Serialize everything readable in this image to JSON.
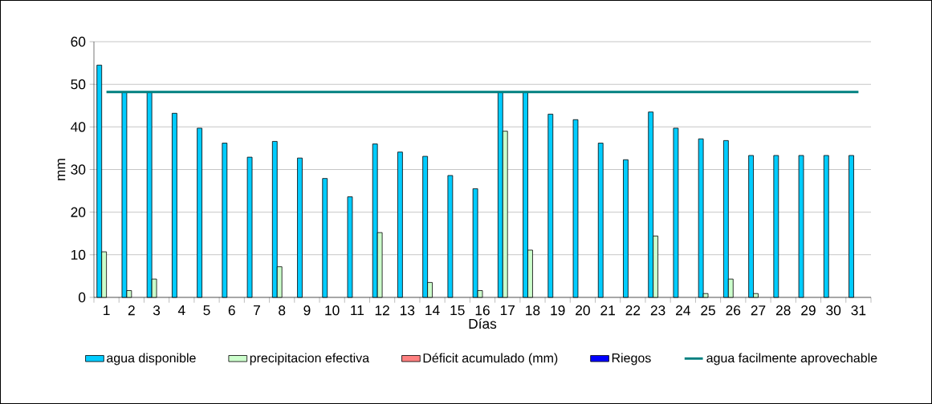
{
  "chart_data": {
    "type": "bar",
    "xlabel": "Días",
    "ylabel": "mm",
    "categories": [
      "1",
      "2",
      "3",
      "4",
      "5",
      "6",
      "7",
      "8",
      "9",
      "10",
      "11",
      "12",
      "13",
      "14",
      "15",
      "16",
      "17",
      "18",
      "19",
      "20",
      "21",
      "22",
      "23",
      "24",
      "25",
      "26",
      "27",
      "28",
      "29",
      "30",
      "31"
    ],
    "series": [
      {
        "name": "agua disponible",
        "color": "#00ccff",
        "values": [
          54.5,
          48.2,
          48.2,
          43.2,
          39.7,
          36.2,
          32.9,
          36.6,
          32.7,
          27.9,
          23.6,
          36.0,
          34.1,
          33.1,
          28.6,
          25.5,
          48.2,
          48.2,
          43.0,
          41.7,
          36.2,
          32.3,
          43.5,
          39.7,
          37.2,
          36.8,
          33.3,
          33.3,
          33.3,
          33.3,
          33.3
        ]
      },
      {
        "name": "precipitacion efectiva",
        "color": "#ccffcc",
        "values": [
          10.7,
          1.6,
          4.3,
          null,
          null,
          null,
          null,
          7.2,
          null,
          null,
          null,
          15.2,
          null,
          3.5,
          null,
          1.6,
          39.0,
          11.1,
          null,
          null,
          null,
          null,
          14.4,
          null,
          0.9,
          4.3,
          0.9,
          null,
          null,
          null,
          null
        ]
      },
      {
        "name": "Déficit acumulado (mm)",
        "color": "#ff8080",
        "values": [
          null,
          null,
          null,
          null,
          null,
          null,
          null,
          null,
          null,
          null,
          null,
          null,
          null,
          null,
          null,
          null,
          null,
          null,
          null,
          null,
          null,
          null,
          null,
          null,
          null,
          null,
          null,
          null,
          null,
          null,
          null
        ]
      },
      {
        "name": "Riegos",
        "color": "#0000ff",
        "values": [
          null,
          null,
          null,
          null,
          null,
          null,
          null,
          null,
          null,
          null,
          null,
          null,
          null,
          null,
          null,
          null,
          null,
          null,
          null,
          null,
          null,
          null,
          null,
          null,
          null,
          null,
          null,
          null,
          null,
          null,
          null
        ]
      },
      {
        "name": "agua facilmente aprovechable",
        "type": "line",
        "color": "#008080",
        "values": [
          48.2,
          48.2,
          48.2,
          48.2,
          48.2,
          48.2,
          48.2,
          48.2,
          48.2,
          48.2,
          48.2,
          48.2,
          48.2,
          48.2,
          48.2,
          48.2,
          48.2,
          48.2,
          48.2,
          48.2,
          48.2,
          48.2,
          48.2,
          48.2,
          48.2,
          48.2,
          48.2,
          48.2,
          48.2,
          48.2,
          48.2
        ]
      }
    ],
    "ylim": [
      0,
      60
    ],
    "yticks": [
      0,
      10,
      20,
      30,
      40,
      50,
      60
    ],
    "grid": "y",
    "legend": "bottom"
  }
}
